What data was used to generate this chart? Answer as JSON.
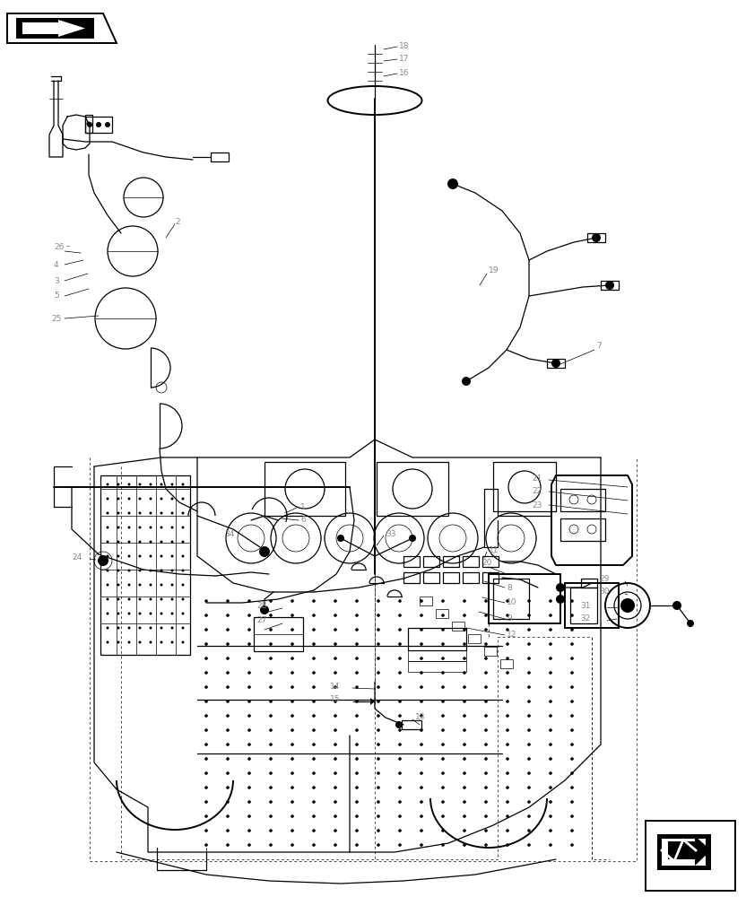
{
  "figsize": [
    8.32,
    10.0
  ],
  "dpi": 100,
  "bg_color": "#ffffff",
  "line_color": "#000000",
  "label_color": "#888888",
  "lw_thin": 0.5,
  "lw_med": 0.9,
  "lw_thick": 1.4,
  "font_size": 6.5,
  "border": 0.18
}
